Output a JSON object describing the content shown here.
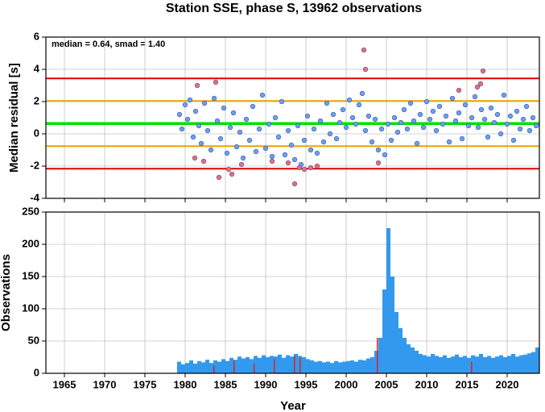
{
  "chart_data": [
    {
      "type": "scatter",
      "title": "Station SSE, phase S, 13962 observations",
      "ylabel": "Median residual [s]",
      "annotation": "median = 0.64, smad = 1.40",
      "xlim": [
        1962.7,
        2024
      ],
      "xticks": [
        1965,
        1970,
        1975,
        1980,
        1985,
        1990,
        1995,
        2000,
        2005,
        2010,
        2015,
        2020
      ],
      "ylim": [
        -4,
        6
      ],
      "yticks": [
        -4,
        -2,
        0,
        2,
        4,
        6
      ],
      "grid": true,
      "reference_lines": [
        {
          "value": 3.44,
          "color": "#e00000"
        },
        {
          "value": 2.04,
          "color": "#f0a000"
        },
        {
          "value": 0.64,
          "color": "#00e000"
        },
        {
          "value": -0.76,
          "color": "#f0a000"
        },
        {
          "value": -2.16,
          "color": "#e00000"
        }
      ],
      "series": [
        {
          "color": "#6f9ff0",
          "x": [
            1979.3,
            1979.6,
            1980.0,
            1980.3,
            1980.6,
            1981.0,
            1981.3,
            1981.7,
            1982.0,
            1982.4,
            1982.8,
            1983.2,
            1983.6,
            1984.0,
            1984.4,
            1984.8,
            1985.2,
            1985.6,
            1986.0,
            1986.4,
            1986.8,
            1987.2,
            1987.6,
            1988.0,
            1988.4,
            1988.8,
            1989.2,
            1989.6,
            1990.0,
            1990.4,
            1990.8,
            1991.2,
            1991.6,
            1992.0,
            1992.4,
            1992.8,
            1993.2,
            1993.6,
            1994.0,
            1994.4,
            1994.8,
            1995.2,
            1995.6,
            1996.0,
            1996.4,
            1996.8,
            1997.2,
            1997.6,
            1998.0,
            1998.4,
            1998.8,
            1999.2,
            1999.6,
            2000.0,
            2000.4,
            2000.8,
            2001.2,
            2001.6,
            2002.0,
            2002.4,
            2002.8,
            2003.2,
            2003.6,
            2004.0,
            2004.4,
            2004.8,
            2005.2,
            2005.6,
            2006.0,
            2006.4,
            2006.8,
            2007.2,
            2007.6,
            2008.0,
            2008.4,
            2008.8,
            2009.2,
            2009.6,
            2010.0,
            2010.4,
            2010.8,
            2011.2,
            2011.6,
            2012.0,
            2012.4,
            2012.8,
            2013.2,
            2013.6,
            2014.0,
            2014.4,
            2014.8,
            2015.2,
            2015.6,
            2016.0,
            2016.4,
            2016.8,
            2017.2,
            2017.6,
            2018.0,
            2018.4,
            2018.8,
            2019.2,
            2019.6,
            2020.0,
            2020.4,
            2020.8,
            2021.2,
            2021.6,
            2022.0,
            2022.4,
            2022.8,
            2023.2,
            2023.6
          ],
          "values": [
            1.2,
            0.3,
            1.8,
            0.9,
            2.1,
            -0.2,
            1.4,
            0.5,
            -0.6,
            1.9,
            0.2,
            -1.0,
            2.2,
            0.8,
            -0.3,
            1.6,
            -1.2,
            0.4,
            1.3,
            -0.8,
            0.1,
            -1.5,
            0.9,
            -0.4,
            1.7,
            -1.1,
            0.3,
            2.4,
            -0.9,
            0.6,
            -1.4,
            1.0,
            -0.2,
            2.0,
            -1.3,
            0.2,
            -0.7,
            -1.6,
            0.5,
            -1.9,
            -0.4,
            1.1,
            -1.0,
            0.3,
            -1.2,
            0.8,
            -0.5,
            1.9,
            0.0,
            1.2,
            -0.3,
            0.7,
            1.5,
            0.4,
            2.1,
            1.0,
            0.6,
            1.8,
            2.5,
            0.2,
            1.1,
            -0.5,
            0.9,
            -1.0,
            0.3,
            -1.3,
            0.6,
            -0.4,
            1.0,
            0.1,
            0.7,
            1.5,
            0.3,
            1.9,
            0.8,
            -0.6,
            1.2,
            0.4,
            2.0,
            0.9,
            1.4,
            0.2,
            1.7,
            0.6,
            1.1,
            -0.5,
            2.2,
            0.8,
            1.3,
            -0.3,
            1.8,
            0.5,
            1.0,
            2.3,
            0.4,
            1.5,
            0.9,
            -0.2,
            1.6,
            0.7,
            1.2,
            0.0,
            2.4,
            0.6,
            1.1,
            -0.4,
            1.4,
            0.3,
            0.9,
            1.7,
            0.2,
            1.0,
            0.5
          ]
        },
        {
          "color": "#ff6b6b",
          "x": [
            1981.2,
            1981.5,
            1982.3,
            1983.8,
            1984.2,
            1985.4,
            1985.8,
            1987.0,
            1990.8,
            1992.8,
            1993.6,
            1994.2,
            1994.8,
            1995.6,
            1996.4,
            2002.2,
            2002.4,
            2004.0,
            2014.0,
            2016.3,
            2016.7,
            2017.0
          ],
          "values": [
            -1.5,
            3.0,
            -1.7,
            3.2,
            -2.7,
            -2.2,
            -2.5,
            -1.9,
            -1.7,
            -1.8,
            -3.1,
            -2.1,
            -2.2,
            -2.1,
            -2.0,
            5.2,
            4.0,
            -1.8,
            2.7,
            2.9,
            3.1,
            3.9
          ]
        }
      ]
    },
    {
      "type": "histogram",
      "ylabel": "Observations",
      "xlabel": "Year",
      "xlim": [
        1962.7,
        2024
      ],
      "xticks": [
        1965,
        1970,
        1975,
        1980,
        1985,
        1990,
        1995,
        2000,
        2005,
        2010,
        2015,
        2020
      ],
      "ylim": [
        0,
        250
      ],
      "yticks": [
        0,
        50,
        100,
        150,
        200,
        250
      ],
      "grid": true,
      "color": "#3399ee",
      "bins": [
        1979,
        1979.5,
        1980,
        1980.5,
        1981,
        1981.5,
        1982,
        1982.5,
        1983,
        1983.5,
        1984,
        1984.5,
        1985,
        1985.5,
        1986,
        1986.5,
        1987,
        1987.5,
        1988,
        1988.5,
        1989,
        1989.5,
        1990,
        1990.5,
        1991,
        1991.5,
        1992,
        1992.5,
        1993,
        1993.5,
        1994,
        1994.5,
        1995,
        1995.5,
        1996,
        1996.5,
        1997,
        1997.5,
        1998,
        1998.5,
        1999,
        1999.5,
        2000,
        2000.5,
        2001,
        2001.5,
        2002,
        2002.5,
        2003,
        2003.5,
        2004,
        2004.5,
        2005,
        2005.5,
        2006,
        2006.5,
        2007,
        2007.5,
        2008,
        2008.5,
        2009,
        2009.5,
        2010,
        2010.5,
        2011,
        2011.5,
        2012,
        2012.5,
        2013,
        2013.5,
        2014,
        2014.5,
        2015,
        2015.5,
        2016,
        2016.5,
        2017,
        2017.5,
        2018,
        2018.5,
        2019,
        2019.5,
        2020,
        2020.5,
        2021,
        2021.5,
        2022,
        2022.5,
        2023,
        2023.5,
        2024
      ],
      "values": [
        18,
        14,
        16,
        20,
        15,
        19,
        17,
        21,
        16,
        20,
        18,
        22,
        19,
        24,
        21,
        26,
        23,
        25,
        22,
        27,
        24,
        28,
        25,
        27,
        26,
        29,
        24,
        28,
        26,
        30,
        27,
        25,
        22,
        20,
        18,
        19,
        17,
        18,
        16,
        19,
        17,
        18,
        19,
        20,
        18,
        21,
        20,
        23,
        25,
        35,
        55,
        130,
        225,
        150,
        95,
        70,
        55,
        45,
        40,
        35,
        30,
        28,
        26,
        30,
        27,
        25,
        28,
        24,
        26,
        29,
        25,
        27,
        24,
        28,
        26,
        30,
        25,
        27,
        24,
        26,
        28,
        25,
        27,
        30,
        26,
        28,
        29,
        31,
        33,
        40
      ],
      "outliers": {
        "color": "#dd2222",
        "x": [
          1983.5,
          1986,
          1988.5,
          1991,
          1993.5,
          1994.2,
          2003.8,
          2015.5
        ],
        "values": [
          12,
          20,
          15,
          22,
          27,
          24,
          55,
          18
        ]
      }
    }
  ]
}
